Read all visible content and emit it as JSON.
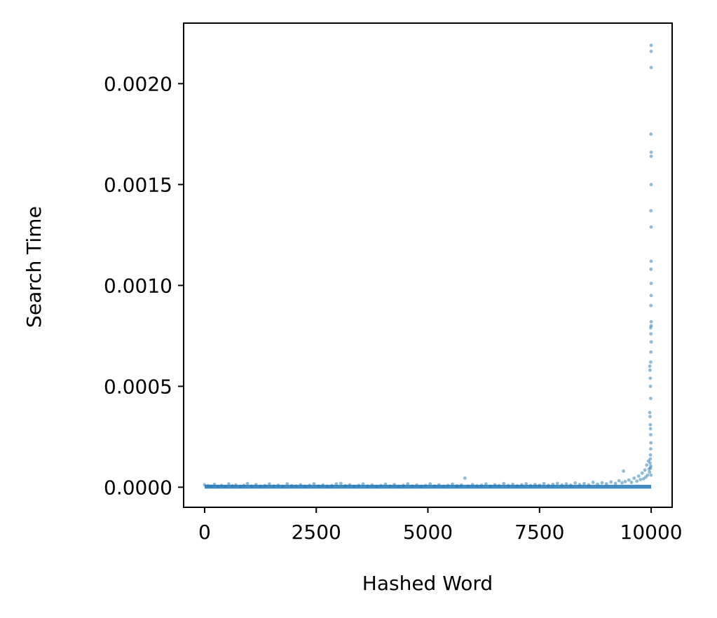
{
  "chart_data": {
    "type": "scatter",
    "title": "",
    "xlabel": "Hashed Word",
    "ylabel": "Search Time",
    "xlim": [
      -470,
      10470
    ],
    "ylim": [
      -9.95e-05,
      0.0023
    ],
    "xticks": [
      0,
      2500,
      5000,
      7500,
      10000
    ],
    "xtick_labels": [
      "0",
      "2500",
      "5000",
      "7500",
      "10000"
    ],
    "yticks": [
      0,
      0.0005,
      0.001,
      0.0015,
      0.002
    ],
    "ytick_labels": [
      "0.0000",
      "0.0005",
      "0.0010",
      "0.0015",
      "0.0020"
    ],
    "grid": false,
    "color": "#1f77b4",
    "series": [
      {
        "points": [
          [
            0,
            1.2e-05
          ],
          [
            80,
            8e-06
          ],
          [
            150,
            6e-06
          ],
          [
            220,
            1.4e-05
          ],
          [
            300,
            5e-06
          ],
          [
            380,
            9e-06
          ],
          [
            460,
            4e-06
          ],
          [
            540,
            1.6e-05
          ],
          [
            620,
            7e-06
          ],
          [
            700,
            1.1e-05
          ],
          [
            800,
            5e-06
          ],
          [
            880,
            9e-06
          ],
          [
            960,
            1.8e-05
          ],
          [
            1050,
            6e-06
          ],
          [
            1150,
            1.3e-05
          ],
          [
            1250,
            5e-06
          ],
          [
            1350,
            8e-06
          ],
          [
            1450,
            1.6e-05
          ],
          [
            1550,
            6e-06
          ],
          [
            1650,
            1e-05
          ],
          [
            1750,
            5e-06
          ],
          [
            1850,
            1.7e-05
          ],
          [
            1950,
            8e-06
          ],
          [
            2050,
            6e-06
          ],
          [
            2150,
            1.2e-05
          ],
          [
            2250,
            5e-06
          ],
          [
            2350,
            9e-06
          ],
          [
            2450,
            1.7e-05
          ],
          [
            2550,
            6e-06
          ],
          [
            2650,
            1.1e-05
          ],
          [
            2750,
            5e-06
          ],
          [
            2850,
            8e-06
          ],
          [
            2950,
            1.6e-05
          ],
          [
            3050,
            1.9e-05
          ],
          [
            3150,
            7e-06
          ],
          [
            3250,
            1.2e-05
          ],
          [
            3350,
            5e-06
          ],
          [
            3450,
            9e-06
          ],
          [
            3550,
            1.6e-05
          ],
          [
            3650,
            6e-06
          ],
          [
            3750,
            1.1e-05
          ],
          [
            3850,
            5e-06
          ],
          [
            3950,
            8e-06
          ],
          [
            4050,
            1.5e-05
          ],
          [
            4150,
            6e-06
          ],
          [
            4250,
            1.3e-05
          ],
          [
            4350,
            5e-06
          ],
          [
            4450,
            9e-06
          ],
          [
            4550,
            1.7e-05
          ],
          [
            4650,
            6e-06
          ],
          [
            4750,
            1.1e-05
          ],
          [
            4850,
            5e-06
          ],
          [
            4950,
            8e-06
          ],
          [
            5050,
            1.6e-05
          ],
          [
            5150,
            6e-06
          ],
          [
            5250,
            1.2e-05
          ],
          [
            5350,
            5e-06
          ],
          [
            5450,
            9e-06
          ],
          [
            5550,
            1.5e-05
          ],
          [
            5650,
            7e-06
          ],
          [
            5750,
            1.1e-05
          ],
          [
            5830,
            4.5e-05
          ],
          [
            5900,
            6e-06
          ],
          [
            6000,
            1.3e-05
          ],
          [
            6100,
            7e-06
          ],
          [
            6200,
            1e-05
          ],
          [
            6300,
            1.6e-05
          ],
          [
            6400,
            6e-06
          ],
          [
            6500,
            1.2e-05
          ],
          [
            6600,
            8e-06
          ],
          [
            6700,
            1.8e-05
          ],
          [
            6800,
            9e-06
          ],
          [
            6900,
            1.4e-05
          ],
          [
            7000,
            7e-06
          ],
          [
            7100,
            1.2e-05
          ],
          [
            7200,
            1.7e-05
          ],
          [
            7300,
            8e-06
          ],
          [
            7400,
            1.3e-05
          ],
          [
            7500,
            1e-05
          ],
          [
            7600,
            1.8e-05
          ],
          [
            7700,
            9e-06
          ],
          [
            7800,
            1.4e-05
          ],
          [
            7900,
            1.9e-05
          ],
          [
            8000,
            1.1e-05
          ],
          [
            8100,
            1.6e-05
          ],
          [
            8200,
            1e-05
          ],
          [
            8300,
            2.1e-05
          ],
          [
            8400,
            1.3e-05
          ],
          [
            8500,
            1.8e-05
          ],
          [
            8600,
            1.2e-05
          ],
          [
            8700,
            2.4e-05
          ],
          [
            8800,
            1.5e-05
          ],
          [
            8900,
            2.2e-05
          ],
          [
            9000,
            1.7e-05
          ],
          [
            9100,
            2.6e-05
          ],
          [
            9200,
            1.9e-05
          ],
          [
            9280,
            3.2e-05
          ],
          [
            9350,
            2.2e-05
          ],
          [
            9380,
            8e-05
          ],
          [
            9420,
            2.8e-05
          ],
          [
            9500,
            3.6e-05
          ],
          [
            9560,
            2.4e-05
          ],
          [
            9620,
            4.5e-05
          ],
          [
            9680,
            3e-05
          ],
          [
            9720,
            5.5e-05
          ],
          [
            9760,
            3.8e-05
          ],
          [
            9800,
            7e-05
          ],
          [
            9830,
            4.2e-05
          ],
          [
            9860,
            8.5e-05
          ],
          [
            9880,
            5e-05
          ],
          [
            9900,
            0.00011
          ],
          [
            9920,
            6e-05
          ],
          [
            9940,
            0.00013
          ],
          [
            9955,
            9e-05
          ],
          [
            9965,
            7.5e-05
          ],
          [
            9975,
            0.00012
          ],
          [
            9985,
            9.5e-05
          ],
          [
            9992,
            0.000105
          ],
          [
            9998,
            6e-05
          ],
          [
            9970,
            0.00037
          ],
          [
            9975,
            0.00035
          ],
          [
            9980,
            0.00031
          ],
          [
            9985,
            0.00029
          ],
          [
            9990,
            0.00026
          ],
          [
            9995,
            0.00022
          ],
          [
            9990,
            0.00019
          ],
          [
            9985,
            0.00016
          ],
          [
            9980,
            0.00014
          ],
          [
            9990,
            0.00044
          ],
          [
            9985,
            0.0005
          ],
          [
            9980,
            0.00054
          ],
          [
            9975,
            0.00058
          ],
          [
            9970,
            0.0006
          ],
          [
            9990,
            0.00062
          ],
          [
            9995,
            0.00067
          ],
          [
            10000,
            0.00072
          ],
          [
            9995,
            0.00076
          ],
          [
            9990,
            0.00079
          ],
          [
            10000,
            0.0008
          ],
          [
            10000,
            0.00082
          ],
          [
            9995,
            0.0009
          ],
          [
            10000,
            0.00095
          ],
          [
            10000,
            0.00101
          ],
          [
            9995,
            0.00108
          ],
          [
            10000,
            0.00112
          ],
          [
            10000,
            0.00129
          ],
          [
            9995,
            0.00137
          ],
          [
            10000,
            0.0015
          ],
          [
            10000,
            0.00164
          ],
          [
            10000,
            0.00166
          ],
          [
            9995,
            0.00175
          ],
          [
            10000,
            0.00208
          ],
          [
            10000,
            0.00216
          ],
          [
            10000,
            0.00219
          ]
        ]
      }
    ]
  }
}
